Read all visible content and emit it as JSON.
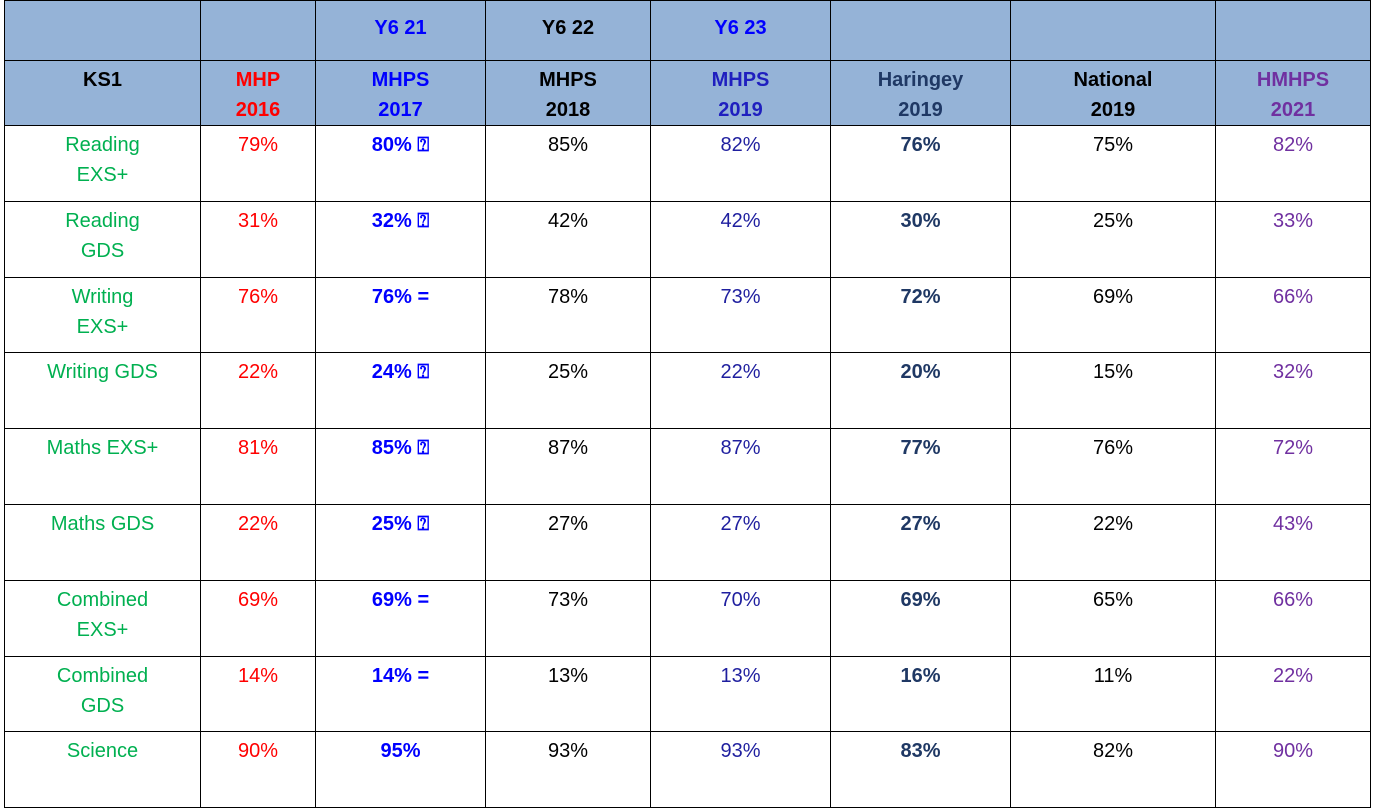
{
  "table": {
    "top_labels": [
      "Y6 21",
      "Y6 22",
      "Y6 23"
    ],
    "columns": [
      "KS1",
      "MHP\n2016",
      "MHPS\n2017",
      "MHPS\n2018",
      "MHPS\n2019",
      "Haringey\n2019",
      "National\n2019",
      "HMHPS\n2021"
    ],
    "rows": [
      [
        "Reading\nEXS+",
        "79%",
        "80% ⍰",
        "85%",
        "82%",
        "76%",
        "75%",
        "82%"
      ],
      [
        "Reading\nGDS",
        "31%",
        "32% ⍰",
        "42%",
        "42%",
        "30%",
        "25%",
        "33%"
      ],
      [
        "Writing\nEXS+",
        "76%",
        "76%  =",
        "78%",
        "73%",
        "72%",
        "69%",
        "66%"
      ],
      [
        "Writing GDS",
        "22%",
        "24% ⍰",
        "25%",
        "22%",
        "20%",
        "15%",
        "32%"
      ],
      [
        "Maths EXS+",
        "81%",
        "85% ⍰",
        "87%",
        "87%",
        "77%",
        "76%",
        "72%"
      ],
      [
        "Maths GDS",
        "22%",
        "25% ⍰",
        "27%",
        "27%",
        "27%",
        "22%",
        "43%"
      ],
      [
        "Combined\nEXS+",
        "69%",
        "69% =",
        "73%",
        "70%",
        "69%",
        "65%",
        "66%"
      ],
      [
        "Combined\nGDS",
        "14%",
        "14% =",
        "13%",
        "13%",
        "16%",
        "11%",
        "22%"
      ],
      [
        "Science",
        "90%",
        "95%",
        "93%",
        "93%",
        "83%",
        "82%",
        "90%"
      ]
    ]
  }
}
